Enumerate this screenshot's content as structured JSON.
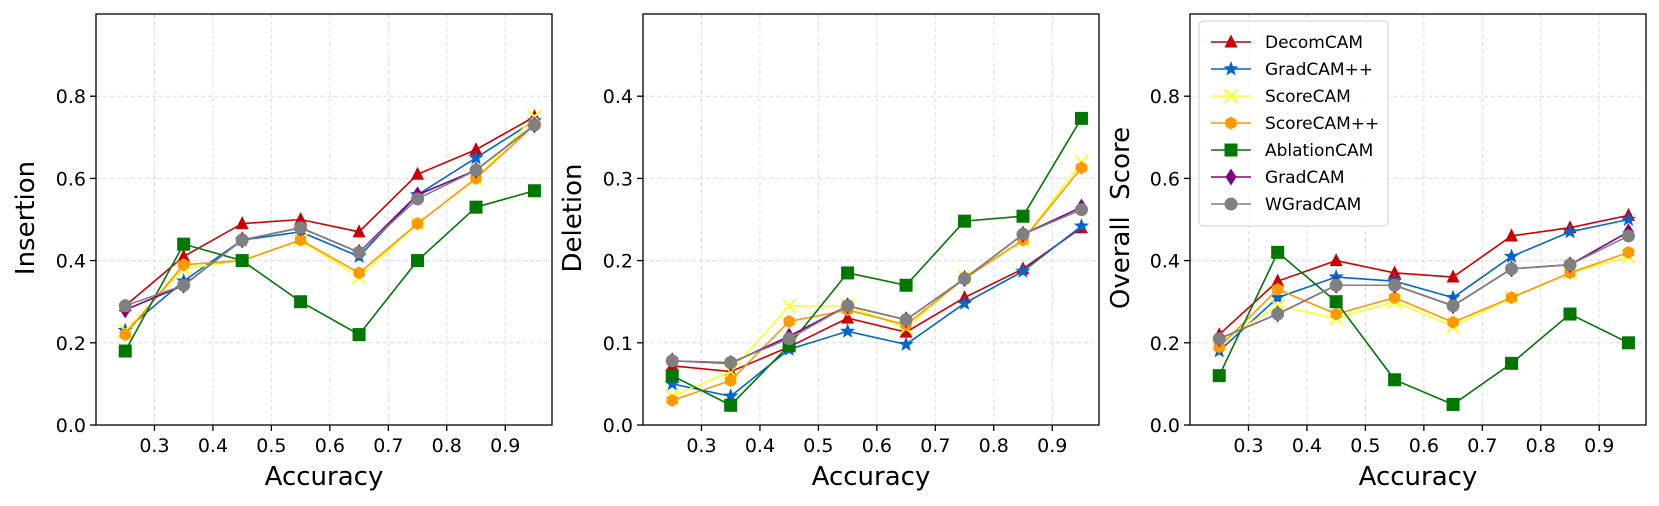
{
  "chart_data": [
    {
      "type": "line",
      "xlabel": "Accuracy",
      "ylabel": "Insertion",
      "xlim": [
        0.2,
        0.98
      ],
      "ylim": [
        0.0,
        1.0
      ],
      "xticks": [
        "0.3",
        "0.4",
        "0.5",
        "0.6",
        "0.7",
        "0.8",
        "0.9"
      ],
      "yticks": [
        "0.0",
        "0.2",
        "0.4",
        "0.6",
        "0.8"
      ],
      "grid": true,
      "x": [
        0.25,
        0.35,
        0.45,
        0.55,
        0.65,
        0.75,
        0.85,
        0.95
      ],
      "series": [
        {
          "name": "DecomCAM",
          "color": "#cc0000",
          "marker": "triangle",
          "values": [
            0.29,
            0.41,
            0.49,
            0.5,
            0.47,
            0.61,
            0.67,
            0.75
          ]
        },
        {
          "name": "GradCAM++",
          "color": "#0066cc",
          "marker": "star",
          "values": [
            0.23,
            0.35,
            0.45,
            0.47,
            0.41,
            0.56,
            0.65,
            0.74
          ]
        },
        {
          "name": "ScoreCAM",
          "color": "#ffff22",
          "marker": "x",
          "values": [
            0.23,
            0.38,
            0.4,
            0.45,
            0.36,
            0.49,
            0.6,
            0.75
          ]
        },
        {
          "name": "ScoreCAM++",
          "color": "#ff9900",
          "marker": "hexagon",
          "values": [
            0.22,
            0.39,
            0.4,
            0.45,
            0.37,
            0.49,
            0.6,
            0.73
          ]
        },
        {
          "name": "AblationCAM",
          "color": "#007700",
          "marker": "square",
          "values": [
            0.18,
            0.44,
            0.4,
            0.3,
            0.22,
            0.4,
            0.53,
            0.57
          ]
        },
        {
          "name": "GradCAM",
          "color": "#800080",
          "marker": "diamond",
          "values": [
            0.28,
            0.34,
            0.45,
            0.48,
            0.42,
            0.56,
            0.62,
            0.73
          ]
        },
        {
          "name": "WGradCAM",
          "color": "#808080",
          "marker": "circle",
          "values": [
            0.29,
            0.34,
            0.45,
            0.48,
            0.42,
            0.55,
            0.62,
            0.73
          ]
        }
      ]
    },
    {
      "type": "line",
      "xlabel": "Accuracy",
      "ylabel": "Deletion",
      "xlim": [
        0.2,
        0.98
      ],
      "ylim": [
        0.0,
        0.5
      ],
      "xticks": [
        "0.3",
        "0.4",
        "0.5",
        "0.6",
        "0.7",
        "0.8",
        "0.9"
      ],
      "yticks": [
        "0.0",
        "0.1",
        "0.2",
        "0.3",
        "0.4"
      ],
      "grid": true,
      "x": [
        0.25,
        0.35,
        0.45,
        0.55,
        0.65,
        0.75,
        0.85,
        0.95
      ],
      "series": [
        {
          "name": "DecomCAM",
          "color": "#cc0000",
          "marker": "triangle",
          "values": [
            0.072,
            0.065,
            0.095,
            0.13,
            0.113,
            0.155,
            0.19,
            0.24
          ]
        },
        {
          "name": "GradCAM++",
          "color": "#0066cc",
          "marker": "star",
          "values": [
            0.05,
            0.035,
            0.092,
            0.114,
            0.098,
            0.148,
            0.187,
            0.242
          ]
        },
        {
          "name": "ScoreCAM",
          "color": "#ffff22",
          "marker": "x",
          "values": [
            0.035,
            0.065,
            0.145,
            0.145,
            0.118,
            0.18,
            0.225,
            0.32
          ]
        },
        {
          "name": "ScoreCAM++",
          "color": "#ff9900",
          "marker": "hexagon",
          "values": [
            0.03,
            0.054,
            0.126,
            0.14,
            0.122,
            0.178,
            0.225,
            0.313
          ]
        },
        {
          "name": "AblationCAM",
          "color": "#007700",
          "marker": "square",
          "values": [
            0.06,
            0.024,
            0.097,
            0.185,
            0.17,
            0.248,
            0.254,
            0.373
          ]
        },
        {
          "name": "GradCAM",
          "color": "#800080",
          "marker": "diamond",
          "values": [
            0.078,
            0.075,
            0.108,
            0.145,
            0.128,
            0.178,
            0.232,
            0.265
          ]
        },
        {
          "name": "WGradCAM",
          "color": "#808080",
          "marker": "circle",
          "values": [
            0.078,
            0.076,
            0.105,
            0.145,
            0.128,
            0.178,
            0.232,
            0.262
          ]
        }
      ]
    },
    {
      "type": "line",
      "xlabel": "Accuracy",
      "ylabel": "Overall  Score",
      "xlim": [
        0.2,
        0.98
      ],
      "ylim": [
        0.0,
        1.0
      ],
      "xticks": [
        "0.3",
        "0.4",
        "0.5",
        "0.6",
        "0.7",
        "0.8",
        "0.9"
      ],
      "yticks": [
        "0.0",
        "0.2",
        "0.4",
        "0.6",
        "0.8"
      ],
      "grid": true,
      "legend": "top-left",
      "x": [
        0.25,
        0.35,
        0.45,
        0.55,
        0.65,
        0.75,
        0.85,
        0.95
      ],
      "series": [
        {
          "name": "DecomCAM",
          "color": "#cc0000",
          "marker": "triangle",
          "values": [
            0.22,
            0.35,
            0.4,
            0.37,
            0.36,
            0.46,
            0.48,
            0.51
          ]
        },
        {
          "name": "GradCAM++",
          "color": "#0066cc",
          "marker": "star",
          "values": [
            0.18,
            0.31,
            0.36,
            0.35,
            0.31,
            0.41,
            0.47,
            0.5
          ]
        },
        {
          "name": "ScoreCAM",
          "color": "#ffff22",
          "marker": "x",
          "values": [
            0.2,
            0.29,
            0.26,
            0.3,
            0.24,
            0.31,
            0.37,
            0.41
          ]
        },
        {
          "name": "ScoreCAM++",
          "color": "#ff9900",
          "marker": "hexagon",
          "values": [
            0.19,
            0.33,
            0.27,
            0.31,
            0.25,
            0.31,
            0.37,
            0.42
          ]
        },
        {
          "name": "AblationCAM",
          "color": "#007700",
          "marker": "square",
          "values": [
            0.12,
            0.42,
            0.3,
            0.11,
            0.05,
            0.15,
            0.27,
            0.2
          ]
        },
        {
          "name": "GradCAM",
          "color": "#800080",
          "marker": "diamond",
          "values": [
            0.21,
            0.27,
            0.34,
            0.34,
            0.29,
            0.38,
            0.39,
            0.47
          ]
        },
        {
          "name": "WGradCAM",
          "color": "#808080",
          "marker": "circle",
          "values": [
            0.21,
            0.27,
            0.34,
            0.34,
            0.29,
            0.38,
            0.39,
            0.46
          ]
        }
      ]
    }
  ]
}
